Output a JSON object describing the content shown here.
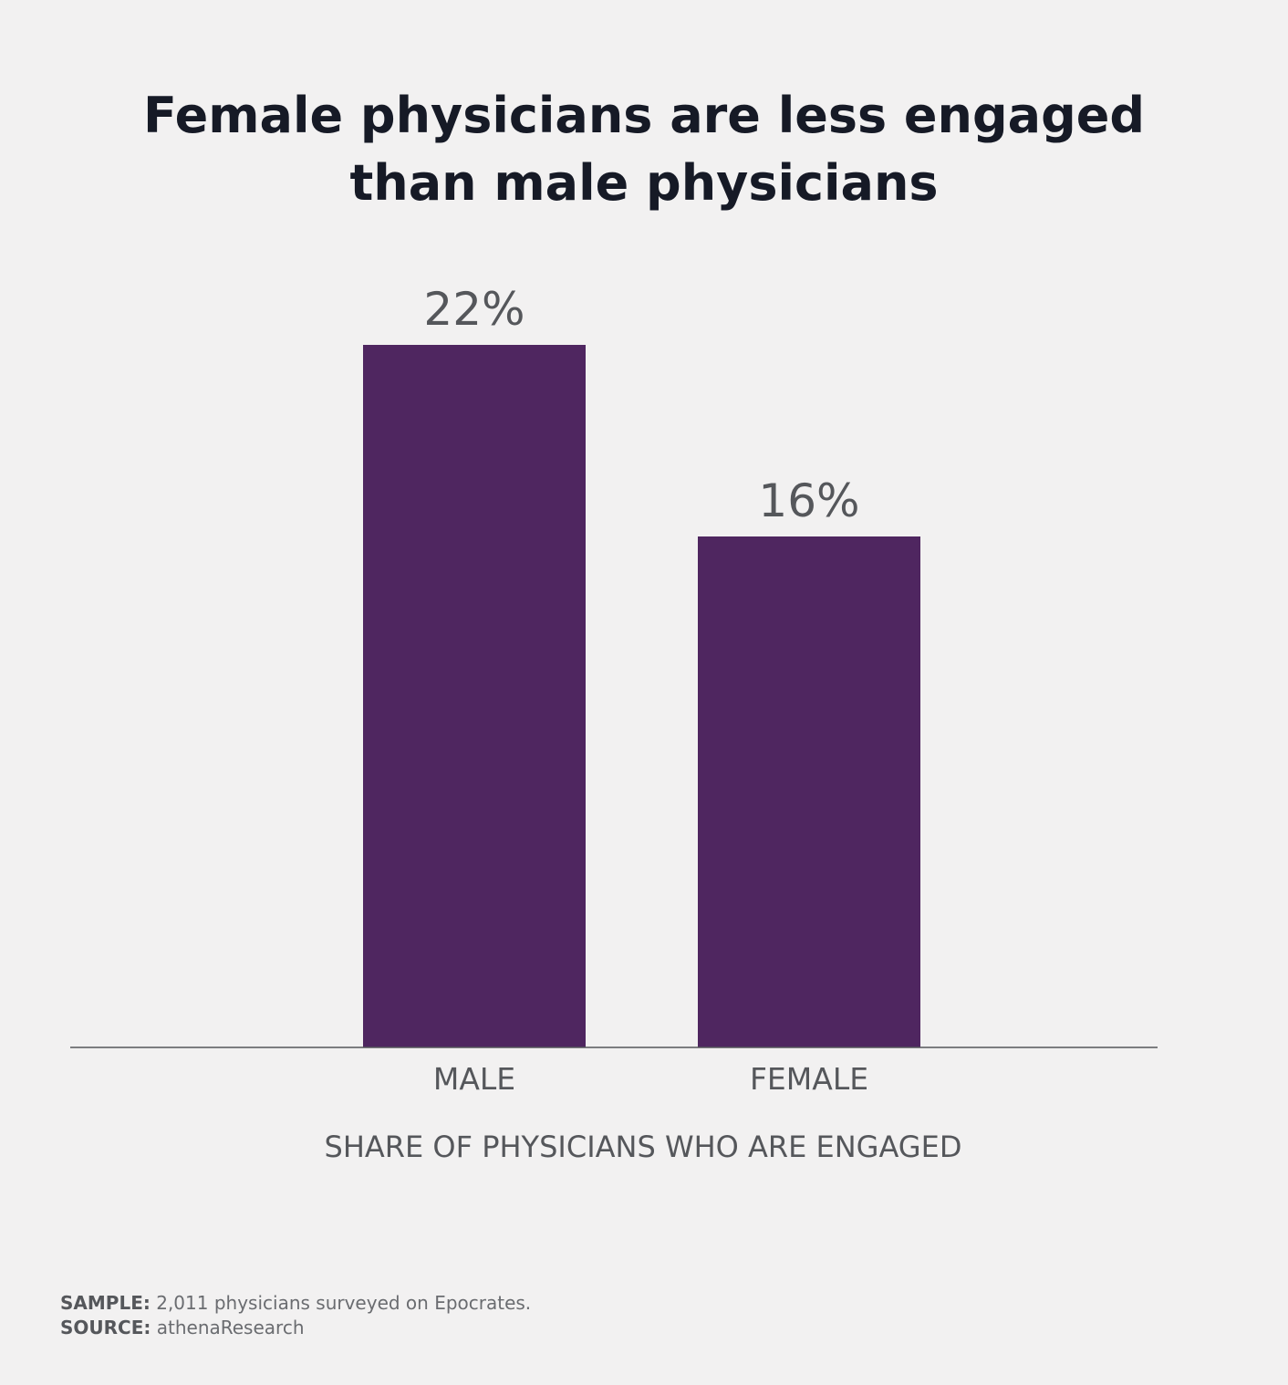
{
  "chart_data": {
    "type": "bar",
    "title": "Female physicians are less engaged than male physicians",
    "title_lines": [
      "Female physicians are less engaged",
      "than male physicians"
    ],
    "categories": [
      "MALE",
      "FEMALE"
    ],
    "values": [
      22,
      16
    ],
    "value_labels": [
      "22%",
      "16%"
    ],
    "xlabel": "SHARE OF PHYSICIANS WHO ARE ENGAGED",
    "ylabel": "",
    "ylim": [
      0,
      22
    ],
    "grid": false,
    "legend": "none",
    "bar_color": "#4f2660",
    "baseline_color": "#55575b"
  },
  "footnotes": {
    "sample_key": "SAMPLE:",
    "sample_text": " 2,011 physicians surveyed on Epocrates.",
    "source_key": "SOURCE:",
    "source_text": " athenaResearch"
  }
}
